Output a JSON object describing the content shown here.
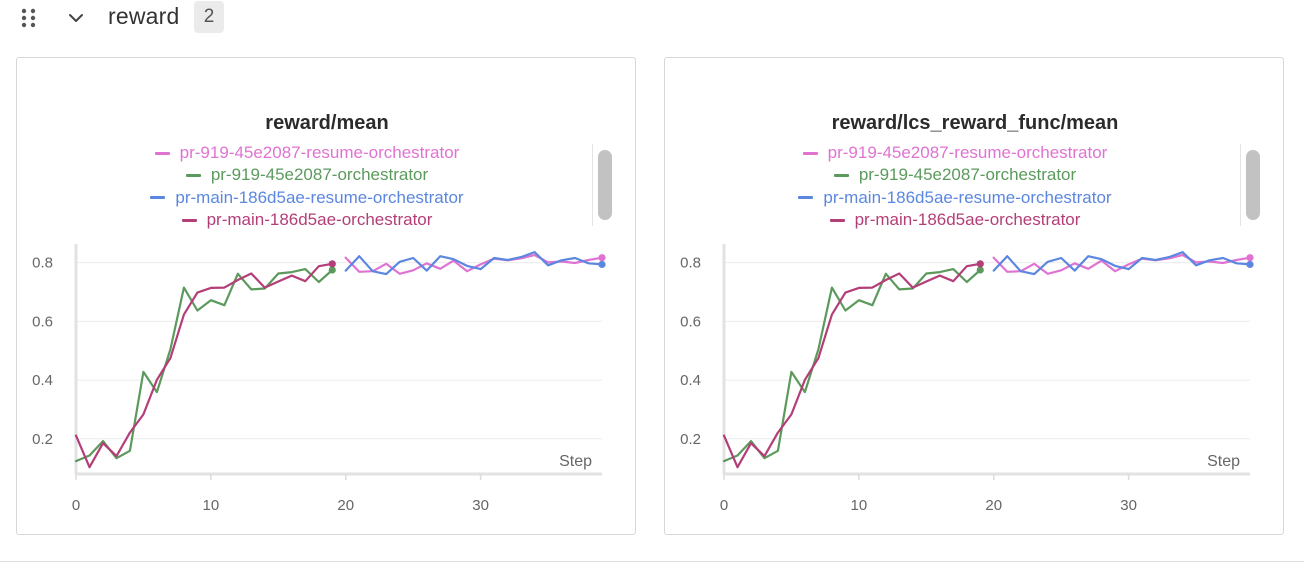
{
  "section": {
    "title": "reward",
    "count": "2",
    "drag_icon": "drag-handle-icon",
    "collapse_icon": "chevron-down-icon"
  },
  "panels": [
    {
      "title": "reward/mean",
      "legend": [
        {
          "name": "pr-919-45e2087-resume-orchestrator",
          "color": "#e073d2"
        },
        {
          "name": "pr-919-45e2087-orchestrator",
          "color": "#5b9a5c"
        },
        {
          "name": "pr-main-186d5ae-resume-orchestrator",
          "color": "#5b87e0"
        },
        {
          "name": "pr-main-186d5ae-orchestrator",
          "color": "#b33e78"
        }
      ],
      "chart_data": {
        "type": "line",
        "xlabel": "Step",
        "xlim": [
          0,
          39
        ],
        "ylim": [
          0.08,
          0.85
        ],
        "x_ticks": [
          "0",
          "10",
          "20",
          "30"
        ],
        "y_ticks": [
          "0.2",
          "0.4",
          "0.6",
          "0.8"
        ],
        "grid": true,
        "series": [
          {
            "name": "pr-919-45e2087-resume-orchestrator",
            "color": "#e073d2",
            "x": [
              20,
              21,
              22,
              23,
              24,
              25,
              26,
              27,
              28,
              29,
              30,
              31,
              32,
              33,
              34,
              35,
              36,
              37,
              38,
              39
            ],
            "y": [
              0.817,
              0.769,
              0.771,
              0.796,
              0.762,
              0.774,
              0.798,
              0.779,
              0.807,
              0.771,
              0.794,
              0.814,
              0.808,
              0.815,
              0.826,
              0.801,
              0.804,
              0.799,
              0.809,
              0.817
            ]
          },
          {
            "name": "pr-919-45e2087-orchestrator",
            "color": "#5b9a5c",
            "x": [
              0,
              1,
              2,
              3,
              4,
              5,
              6,
              7,
              8,
              9,
              10,
              11,
              12,
              13,
              14,
              15,
              16,
              17,
              18,
              19
            ],
            "y": [
              0.124,
              0.143,
              0.192,
              0.134,
              0.159,
              0.428,
              0.359,
              0.505,
              0.715,
              0.637,
              0.672,
              0.655,
              0.762,
              0.709,
              0.712,
              0.763,
              0.768,
              0.778,
              0.734,
              0.775
            ]
          },
          {
            "name": "pr-main-186d5ae-resume-orchestrator",
            "color": "#5b87e0",
            "x": [
              20,
              21,
              22,
              23,
              24,
              25,
              26,
              27,
              28,
              29,
              30,
              31,
              32,
              33,
              34,
              35,
              36,
              37,
              38,
              39
            ],
            "y": [
              0.773,
              0.822,
              0.771,
              0.761,
              0.803,
              0.816,
              0.773,
              0.822,
              0.812,
              0.789,
              0.778,
              0.816,
              0.809,
              0.819,
              0.836,
              0.791,
              0.808,
              0.816,
              0.798,
              0.794
            ]
          },
          {
            "name": "pr-main-186d5ae-orchestrator",
            "color": "#b33e78",
            "x": [
              0,
              1,
              2,
              3,
              4,
              5,
              6,
              7,
              8,
              9,
              10,
              11,
              12,
              13,
              14,
              15,
              16,
              17,
              18,
              19
            ],
            "y": [
              0.211,
              0.103,
              0.185,
              0.141,
              0.221,
              0.283,
              0.401,
              0.475,
              0.623,
              0.698,
              0.714,
              0.715,
              0.741,
              0.763,
              0.715,
              0.736,
              0.756,
              0.737,
              0.788,
              0.796
            ]
          }
        ]
      }
    },
    {
      "title": "reward/lcs_reward_func/mean",
      "legend": [
        {
          "name": "pr-919-45e2087-resume-orchestrator",
          "color": "#e073d2"
        },
        {
          "name": "pr-919-45e2087-orchestrator",
          "color": "#5b9a5c"
        },
        {
          "name": "pr-main-186d5ae-resume-orchestrator",
          "color": "#5b87e0"
        },
        {
          "name": "pr-main-186d5ae-orchestrator",
          "color": "#b33e78"
        }
      ],
      "chart_data": {
        "type": "line",
        "xlabel": "Step",
        "xlim": [
          0,
          39
        ],
        "ylim": [
          0.08,
          0.85
        ],
        "x_ticks": [
          "0",
          "10",
          "20",
          "30"
        ],
        "y_ticks": [
          "0.2",
          "0.4",
          "0.6",
          "0.8"
        ],
        "grid": true,
        "series": [
          {
            "name": "pr-919-45e2087-resume-orchestrator",
            "color": "#e073d2",
            "x": [
              20,
              21,
              22,
              23,
              24,
              25,
              26,
              27,
              28,
              29,
              30,
              31,
              32,
              33,
              34,
              35,
              36,
              37,
              38,
              39
            ],
            "y": [
              0.817,
              0.769,
              0.771,
              0.796,
              0.762,
              0.774,
              0.798,
              0.779,
              0.807,
              0.771,
              0.794,
              0.814,
              0.808,
              0.815,
              0.826,
              0.801,
              0.804,
              0.799,
              0.809,
              0.817
            ]
          },
          {
            "name": "pr-919-45e2087-orchestrator",
            "color": "#5b9a5c",
            "x": [
              0,
              1,
              2,
              3,
              4,
              5,
              6,
              7,
              8,
              9,
              10,
              11,
              12,
              13,
              14,
              15,
              16,
              17,
              18,
              19
            ],
            "y": [
              0.124,
              0.143,
              0.192,
              0.134,
              0.159,
              0.428,
              0.359,
              0.505,
              0.715,
              0.637,
              0.672,
              0.655,
              0.762,
              0.709,
              0.712,
              0.763,
              0.768,
              0.778,
              0.734,
              0.775
            ]
          },
          {
            "name": "pr-main-186d5ae-resume-orchestrator",
            "color": "#5b87e0",
            "x": [
              20,
              21,
              22,
              23,
              24,
              25,
              26,
              27,
              28,
              29,
              30,
              31,
              32,
              33,
              34,
              35,
              36,
              37,
              38,
              39
            ],
            "y": [
              0.773,
              0.822,
              0.771,
              0.761,
              0.803,
              0.816,
              0.773,
              0.822,
              0.812,
              0.789,
              0.778,
              0.816,
              0.809,
              0.819,
              0.836,
              0.791,
              0.808,
              0.816,
              0.798,
              0.794
            ]
          },
          {
            "name": "pr-main-186d5ae-orchestrator",
            "color": "#b33e78",
            "x": [
              0,
              1,
              2,
              3,
              4,
              5,
              6,
              7,
              8,
              9,
              10,
              11,
              12,
              13,
              14,
              15,
              16,
              17,
              18,
              19
            ],
            "y": [
              0.211,
              0.103,
              0.185,
              0.141,
              0.221,
              0.283,
              0.401,
              0.475,
              0.623,
              0.698,
              0.714,
              0.715,
              0.741,
              0.763,
              0.715,
              0.736,
              0.756,
              0.737,
              0.788,
              0.796
            ]
          }
        ]
      }
    }
  ]
}
